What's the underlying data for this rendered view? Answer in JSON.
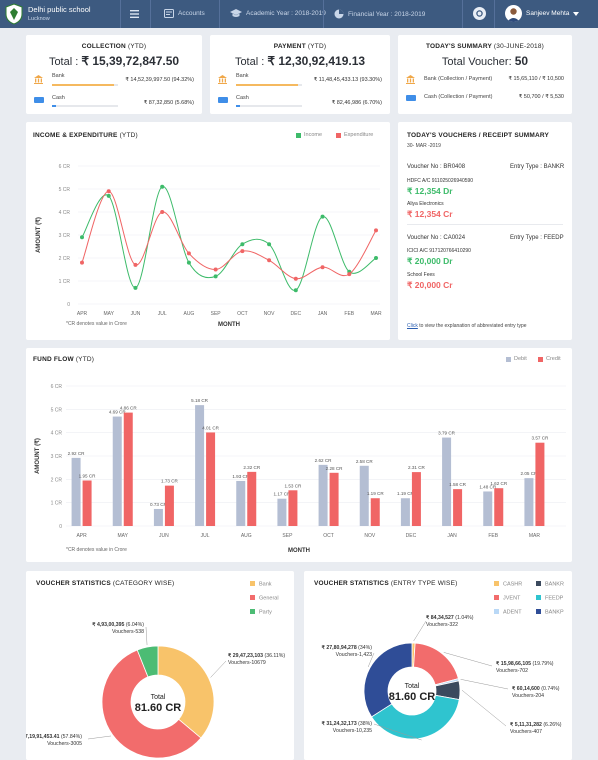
{
  "topbar": {
    "school_name": "Delhi public school",
    "city": "Lucknow",
    "accounts_label": "Accounts",
    "academic_year": "Academic Year : 2018-2019",
    "financial_year": "Financial Year : 2018-2019",
    "user_name": "Sanjeev Mehta",
    "colors": {
      "bar": "#3d5a80"
    }
  },
  "collection": {
    "title": "COLLECTION",
    "title_sub": "(YTD)",
    "total_prefix": "Total : ",
    "total": "₹ 15,39,72,847.50",
    "rows": [
      {
        "label": "Bank",
        "value": "₹ 14,52,39,997.50 (94.32%)",
        "percent": 94.32,
        "color": "#f5b95f",
        "icon": "bank-icon"
      },
      {
        "label": "Cash",
        "value": "₹ 87,32,850 (5.68%)",
        "percent": 5.68,
        "color": "#3f8ee8",
        "icon": "cash-icon"
      }
    ]
  },
  "payment": {
    "title": "PAYMENT",
    "title_sub": "(YTD)",
    "total_prefix": "Total : ",
    "total": "₹ 12,30,92,419.13",
    "rows": [
      {
        "label": "Bank",
        "value": "₹ 11,48,45,433.13 (93.30%)",
        "percent": 93.3,
        "color": "#f5b95f",
        "icon": "bank-icon"
      },
      {
        "label": "Cash",
        "value": "₹ 82,46,986 (6.70%)",
        "percent": 6.7,
        "color": "#3f8ee8",
        "icon": "cash-icon"
      }
    ]
  },
  "today_summary": {
    "title": "TODAY'S SUMMARY",
    "title_sub": "(30-JUNE-2018)",
    "total_prefix": "Total Voucher: ",
    "total": "50",
    "rows": [
      {
        "label": "Bank (Collection / Payment)",
        "value": "₹ 15,65,110 / ₹ 10,500",
        "icon": "bank-icon"
      },
      {
        "label": "Cash (Collection / Payment)",
        "value": "₹ 50,700 / ₹ 5,530",
        "icon": "cash-icon"
      }
    ]
  },
  "income_expenditure": {
    "title": "INCOME & EXPENDITURE",
    "title_sub": "(YTD)",
    "footnote": "*CR denotes value in Crore",
    "chart_data": {
      "type": "line",
      "title": "INCOME & EXPENDITURE (YTD)",
      "xlabel": "MONTH",
      "ylabel": "AMOUNT (₹)",
      "ylim": [
        0,
        6
      ],
      "yticks": [
        "0",
        "1 CR",
        "2 CR",
        "3 CR",
        "4 CR",
        "5 CR",
        "6 CR"
      ],
      "categories": [
        "APR",
        "MAY",
        "JUN",
        "JUL",
        "AUG",
        "SEP",
        "OCT",
        "NOV",
        "DEC",
        "JAN",
        "FEB",
        "MAR"
      ],
      "legend_position": "top-right",
      "series": [
        {
          "name": "Income",
          "color": "#3dbb6a",
          "values": [
            2.9,
            4.7,
            0.7,
            5.1,
            1.8,
            1.2,
            2.6,
            2.6,
            0.6,
            3.8,
            1.4,
            2.0
          ]
        },
        {
          "name": "Expenditure",
          "color": "#f06565",
          "values": [
            1.8,
            4.9,
            1.7,
            4.0,
            2.2,
            1.5,
            2.3,
            1.9,
            1.1,
            1.6,
            1.3,
            3.2
          ]
        }
      ]
    }
  },
  "vouchers_summary": {
    "title": "TODAY'S VOUCHERS / RECEIPT SUMMARY",
    "date": "30- MAR -2019",
    "entries": [
      {
        "voucher": "Voucher No : BR0408",
        "entry_type": "Entry Type : BANKR",
        "line1_label": "HDFC A/C 911025026940590",
        "line1_amount": "₹ 12,354 Dr",
        "line1_color": "#3dbb6a",
        "line2_label": "Aliya Electronics",
        "line2_amount": "₹ 12,354 Cr",
        "line2_color": "#f06565"
      },
      {
        "voucher": "Voucher No : CA0024",
        "entry_type": "Entry Type : FEEDP",
        "line1_label": "ICICI A/C 917120766410290",
        "line1_amount": "₹ 20,000 Dr",
        "line1_color": "#3dbb6a",
        "line2_label": "School Fees",
        "line2_amount": "₹ 20,000 Cr",
        "line2_color": "#f06565"
      }
    ],
    "footer_click": "Click",
    "footer_rest": " to view the explanation of abbreviated entry type"
  },
  "fund_flow": {
    "title": "FUND FLOW",
    "title_sub": "(YTD)",
    "footnote": "*CR denotes value in Crore",
    "chart_data": {
      "type": "bar",
      "title": "FUND FLOW (YTD)",
      "xlabel": "MONTH",
      "ylabel": "AMOUNT (₹)",
      "ylim": [
        0,
        6
      ],
      "yticks": [
        "0",
        "1 CR",
        "2 CR",
        "3 CR",
        "4 CR",
        "5 CR",
        "6 CR"
      ],
      "categories": [
        "APR",
        "MAY",
        "JUN",
        "JUL",
        "AUG",
        "SEP",
        "OCT",
        "NOV",
        "DEC",
        "JAN",
        "FEB",
        "MAR"
      ],
      "legend_position": "top-right",
      "series": [
        {
          "name": "Debit",
          "color": "#b4bed3",
          "values": [
            2.92,
            4.69,
            0.73,
            5.18,
            1.93,
            1.17,
            2.62,
            2.58,
            1.19,
            3.79,
            1.48,
            2.05
          ],
          "labels": [
            "2.92 CR",
            "4.69 CR",
            "0.73 CR",
            "5.18 CR",
            "1.93 CR",
            "1.17 CR",
            "2.62 CR",
            "2.58 CR",
            "1.19 CR",
            "3.79 CR",
            "1.48 CR",
            "2.05 CR"
          ]
        },
        {
          "name": "Credit",
          "color": "#f06565",
          "values": [
            1.95,
            4.86,
            1.73,
            4.01,
            2.32,
            1.53,
            2.28,
            1.19,
            2.31,
            1.58,
            1.62,
            3.57
          ],
          "labels": [
            "1.95 CR",
            "4.86 CR",
            "1.73 CR",
            "4.01 CR",
            "2.32 CR",
            "1.53 CR",
            "2.28 CR",
            "1.19 CR",
            "2.31 CR",
            "1.58 CR",
            "1.62 CR",
            "3.57 CR"
          ]
        }
      ]
    }
  },
  "voucher_category": {
    "title": "VOUCHER STATISTICS",
    "title_sub": "(CATEGORY WISE)",
    "total_label": "Total",
    "total_value": "81.60 CR",
    "chart_data": {
      "type": "pie",
      "title": "VOUCHER STATISTICS (CATEGORY WISE)",
      "legend_position": "top-right",
      "slices": [
        {
          "name": "Bank",
          "value": 36.11,
          "color": "#f8c36a",
          "amount": "₹ 29,47,23,103",
          "pct": "(36.11%)",
          "vouchers": "Vouchers-10679"
        },
        {
          "name": "General",
          "value": 57.84,
          "color": "#f26c6c",
          "amount": "₹ 47,19,91,453.41",
          "pct": "(57.84%)",
          "vouchers": "Vouchers-3005"
        },
        {
          "name": "Party",
          "value": 6.04,
          "color": "#4cbc74",
          "amount": "₹ 4,93,00,395",
          "pct": "(6.04%)",
          "vouchers": "Vouchers-538"
        }
      ]
    }
  },
  "voucher_entry": {
    "title": "VOUCHER STATISTICS",
    "title_sub": "(ENTRY TYPE WISE)",
    "total_label": "Total",
    "total_value": "81.60 CR",
    "chart_data": {
      "type": "pie",
      "title": "VOUCHER STATISTICS (ENTRY TYPE WISE)",
      "legend_position": "top-right",
      "legend": [
        {
          "name": "CASHR",
          "color": "#f8c36a"
        },
        {
          "name": "BANKR",
          "color": "#3b4a5e"
        },
        {
          "name": "JVENT",
          "color": "#f26c6c"
        },
        {
          "name": "FEEDP",
          "color": "#2fc4cf"
        },
        {
          "name": "ADENT",
          "color": "#b9d8f6"
        },
        {
          "name": "BANKP",
          "color": "#2f4d97"
        }
      ],
      "slices": [
        {
          "name": "CASHR",
          "value": 1.04,
          "color": "#f8c36a",
          "amount": "₹ 84,34,527",
          "pct": "(1.04%)",
          "vouchers": "Vouchers-322"
        },
        {
          "name": "JVENT",
          "value": 19.79,
          "color": "#f26c6c",
          "amount": "₹ 15,98,66,105",
          "pct": "(19.79%)",
          "vouchers": "Vouchers-702"
        },
        {
          "name": "ADENT",
          "value": 0.74,
          "color": "#b9d8f6",
          "amount": "₹ 60,14,600",
          "pct": "(0.74%)",
          "vouchers": "Vouchers-204"
        },
        {
          "name": "BANKR",
          "value": 6.26,
          "color": "#3b4a5e",
          "amount": "₹ 5,11,31,282",
          "pct": "(6.26%)",
          "vouchers": "Vouchers-407"
        },
        {
          "name": "FEEDP",
          "value": 38.0,
          "color": "#2fc4cf",
          "amount": "₹ 31,24,32,173",
          "pct": "(38%)",
          "vouchers": "Vouchers-10,235"
        },
        {
          "name": "BANKP",
          "value": 34.0,
          "color": "#2f4d97",
          "amount": "₹ 27,80,94,278",
          "pct": "(34%)",
          "vouchers": "Vouchers-1,423"
        }
      ]
    }
  }
}
